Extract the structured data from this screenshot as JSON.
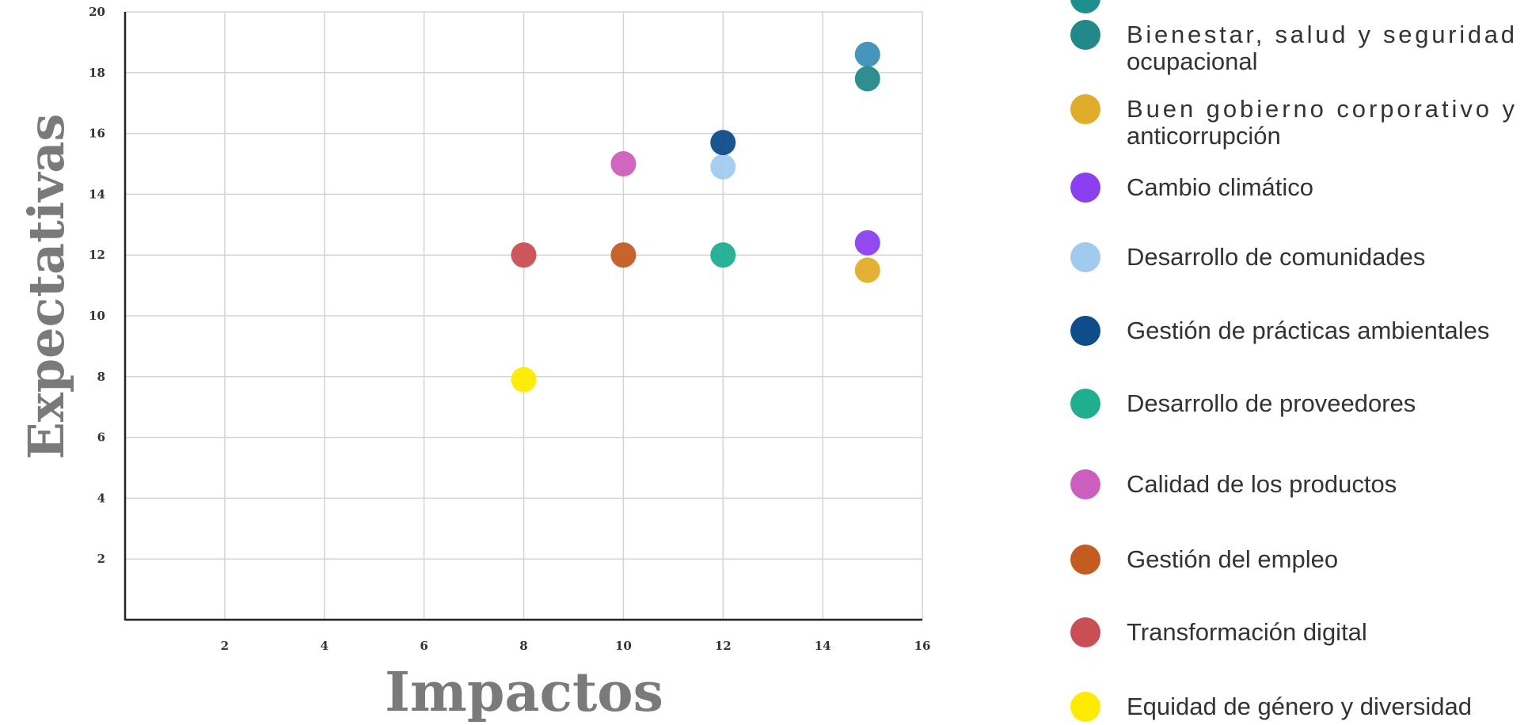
{
  "chart_data": {
    "type": "scatter",
    "xlabel": "Impactos",
    "ylabel": "Expectativas",
    "xlim": [
      0,
      16
    ],
    "ylim": [
      0,
      20
    ],
    "xticks": [
      2,
      4,
      6,
      8,
      10,
      12,
      14,
      16
    ],
    "yticks": [
      2,
      4,
      6,
      8,
      10,
      12,
      14,
      16,
      18,
      20
    ],
    "grid": true,
    "legend_position": "right",
    "series": [
      {
        "name": "Bienestar, salud y seguridad ocupacional",
        "color": "#23888a",
        "points": [
          [
            14.9,
            17.8
          ]
        ],
        "legend_lines": [
          "Bienestar, salud y seguridad",
          "ocupacional"
        ]
      },
      {
        "name": "Buen gobierno corporativo y anticorrupción",
        "color": "#e0ad2b",
        "points": [
          [
            14.9,
            11.5
          ]
        ],
        "legend_lines": [
          "Buen gobierno corporativo y",
          "anticorrupción"
        ]
      },
      {
        "name": "Cambio climático",
        "color": "#8b3ff0",
        "points": [
          [
            14.9,
            12.4
          ]
        ],
        "legend_lines": [
          "Cambio climático"
        ]
      },
      {
        "name": "Desarrollo de comunidades",
        "color": "#a0cbee",
        "points": [
          [
            12.0,
            14.9
          ]
        ],
        "legend_lines": [
          "Desarrollo de comunidades"
        ]
      },
      {
        "name": "Gestión de prácticas ambientales",
        "color": "#0f4c8a",
        "points": [
          [
            12.0,
            15.7
          ]
        ],
        "legend_lines": [
          "Gestión de prácticas ambientales"
        ]
      },
      {
        "name": "Desarrollo de proveedores",
        "color": "#1fae90",
        "points": [
          [
            12.0,
            12.0
          ]
        ],
        "legend_lines": [
          "Desarrollo de proveedores"
        ]
      },
      {
        "name": "Calidad de los productos",
        "color": "#cc5fbe",
        "points": [
          [
            10.0,
            15.0
          ]
        ],
        "legend_lines": [
          "Calidad de los productos"
        ]
      },
      {
        "name": "Gestión del empleo",
        "color": "#c45c22",
        "points": [
          [
            10.0,
            12.0
          ]
        ],
        "legend_lines": [
          "Gestión del empleo"
        ]
      },
      {
        "name": "Transformación digital",
        "color": "#c94f55",
        "points": [
          [
            8.0,
            12.0
          ]
        ],
        "legend_lines": [
          "Transformación digital"
        ]
      },
      {
        "name": "Equidad de género y diversidad",
        "color": "#ffeb00",
        "points": [
          [
            8.0,
            7.9
          ]
        ],
        "legend_lines": [
          "Equidad de género y diversidad"
        ]
      }
    ],
    "extra_points": [
      {
        "color": "#3b8fb8",
        "x": 14.9,
        "y": 18.6
      }
    ]
  }
}
